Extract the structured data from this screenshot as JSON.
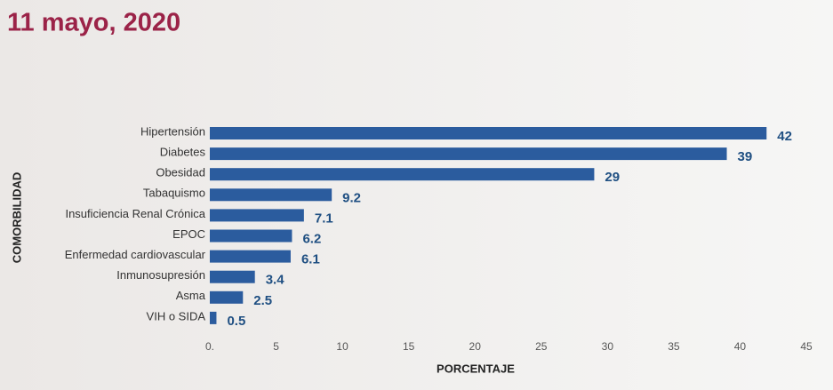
{
  "chart_data": {
    "type": "bar",
    "orientation": "horizontal",
    "title": "11 mayo, 2020",
    "x_label": "PORCENTAJE",
    "y_label": "COMORBILIDAD",
    "categories": [
      "Hipertensión",
      "Diabetes",
      "Obesidad",
      "Tabaquismo",
      "Insuficiencia Renal Crónica",
      "EPOC",
      "Enfermedad cardiovascular",
      "Inmunosupresión",
      "Asma",
      "VIH o SIDA"
    ],
    "values": [
      42,
      39,
      29,
      9.2,
      7.1,
      6.2,
      6.1,
      3.4,
      2.5,
      0.5
    ],
    "color": "#2b5c9e",
    "xlim": [
      0,
      45
    ],
    "xticks": [
      {
        "value": 0,
        "label": "0."
      },
      5,
      10,
      15,
      20,
      25,
      30,
      35,
      40,
      45
    ]
  }
}
